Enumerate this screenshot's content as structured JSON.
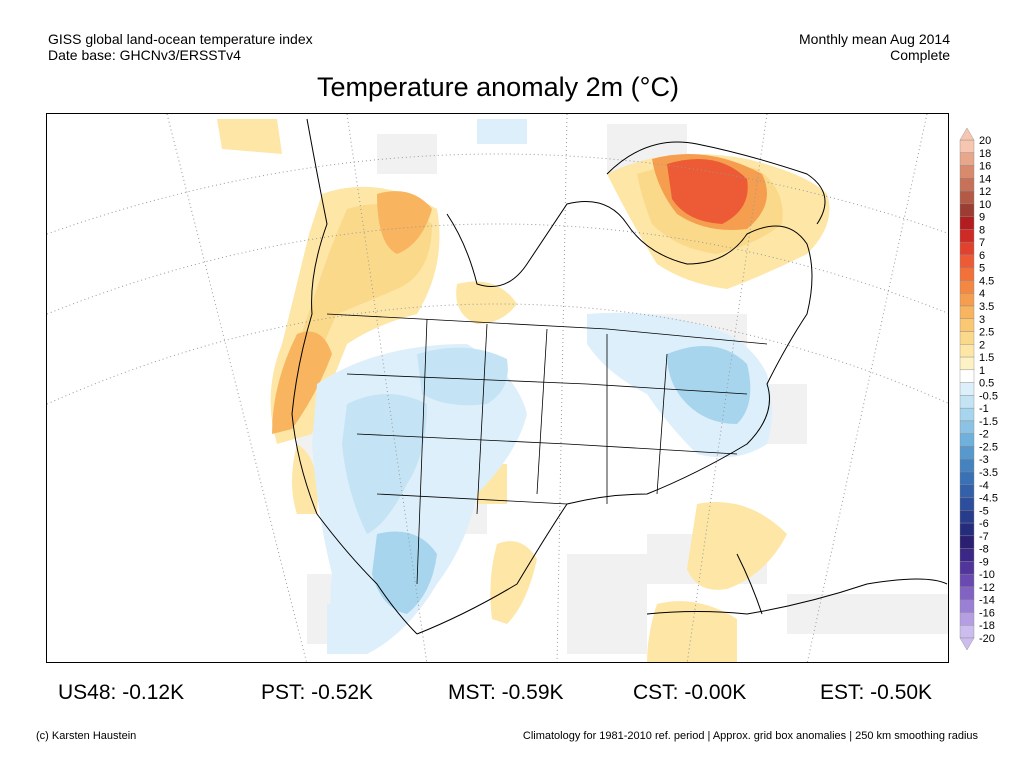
{
  "header": {
    "line1_left": "GISS global land-ocean temperature index",
    "line2_left": "Date base: GHCNv3/ERSSTv4",
    "line1_right": "Monthly mean Aug 2014",
    "line2_right": "Complete"
  },
  "title": "Temperature anomaly 2m (°C)",
  "legend": {
    "labels": [
      "20",
      "18",
      "16",
      "14",
      "12",
      "10",
      "9",
      "8",
      "7",
      "6",
      "5",
      "4.5",
      "4",
      "3.5",
      "3",
      "2.5",
      "2",
      "1.5",
      "1",
      "0.5",
      "-0.5",
      "-1",
      "-1.5",
      "-2",
      "-2.5",
      "-3",
      "-3.5",
      "-4",
      "-4.5",
      "-5",
      "-6",
      "-7",
      "-8",
      "-9",
      "-10",
      "-12",
      "-14",
      "-16",
      "-18",
      "-20"
    ],
    "colors": [
      "#f6c6b0",
      "#e8a68b",
      "#d88a6d",
      "#c77258",
      "#b25a45",
      "#9b3d33",
      "#b31d20",
      "#cf2b26",
      "#e0422e",
      "#ec5b35",
      "#f2713b",
      "#f48742",
      "#f59e4f",
      "#f8b45e",
      "#fac872",
      "#fbd98a",
      "#fde6a6",
      "#fdf2c6",
      "#ffffff",
      "#ddeffa",
      "#c4e4f5",
      "#a8d5ee",
      "#8cc3e5",
      "#6fb0dc",
      "#5799cd",
      "#4483bf",
      "#3a70b4",
      "#3460a9",
      "#2d4e9c",
      "#283c8c",
      "#252c7c",
      "#2a1f70",
      "#3b2785",
      "#52359a",
      "#6a4ab0",
      "#8263c4",
      "#9b7fd4",
      "#b59ee2",
      "#cdbdee"
    ]
  },
  "stats": [
    {
      "label": "US48: -0.12K"
    },
    {
      "label": "PST: -0.52K"
    },
    {
      "label": "MST: -0.59K"
    },
    {
      "label": "CST: -0.00K"
    },
    {
      "label": "EST: -0.50K"
    }
  ],
  "footer": {
    "left": "(c) Karsten Haustein",
    "right": "Climatology for 1981-2010 ref. period | Approx. grid box anomalies | 250 km smoothing radius"
  }
}
